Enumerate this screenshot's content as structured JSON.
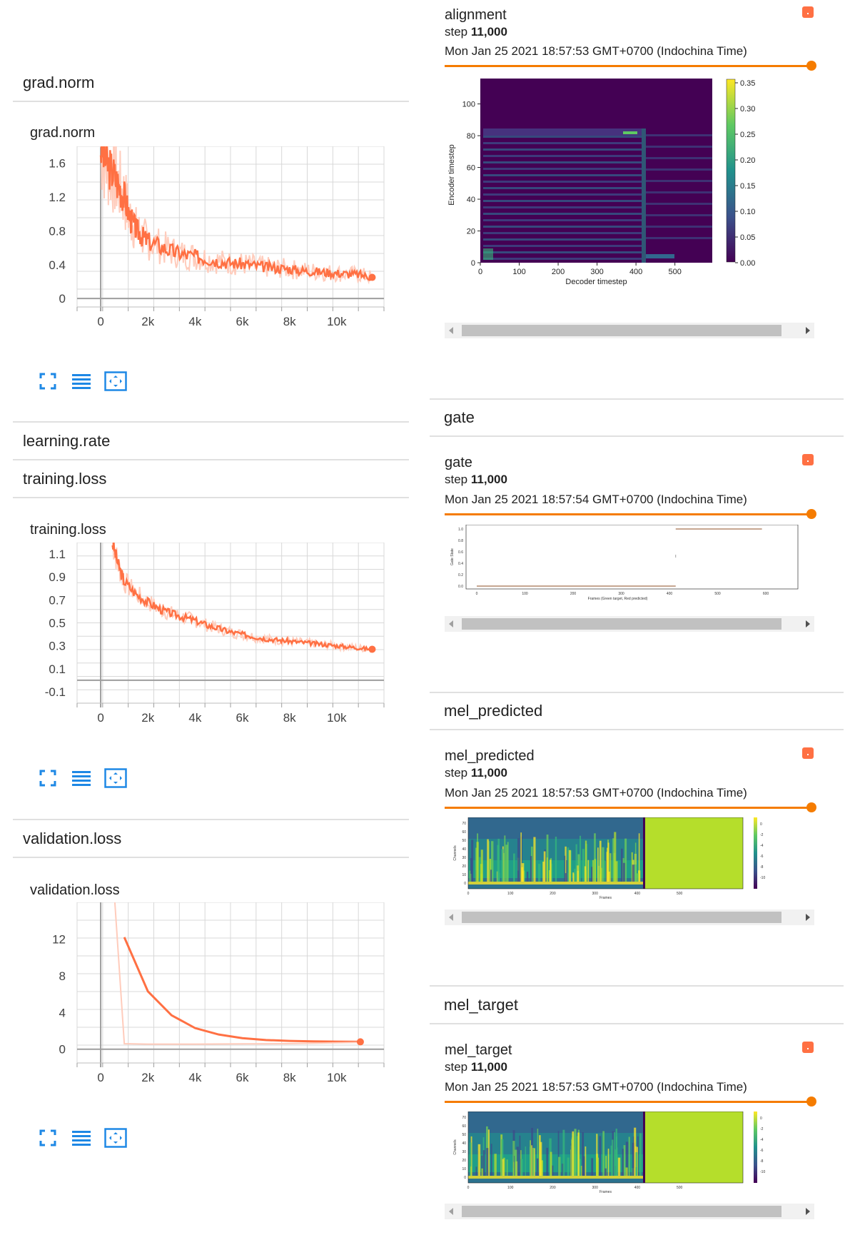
{
  "scalars": {
    "grad_norm": {
      "section_title": "grad.norm",
      "card_title": "grad.norm",
      "chart_data": {
        "type": "line",
        "title": "grad.norm",
        "x_ticks": [
          "0",
          "2k",
          "4k",
          "6k",
          "8k",
          "10k"
        ],
        "y_ticks": [
          "1.6",
          "1.2",
          "0.8",
          "0.4",
          "0"
        ],
        "xlim": [
          -1000,
          12000
        ],
        "ylim": [
          -0.1,
          1.8
        ],
        "colors": {
          "smoothed": "#ff7043",
          "raw": "#ffccbc"
        },
        "series": [
          {
            "x": [
              0,
              250,
              500,
              750,
              1000,
              1250,
              1500,
              1750,
              2000,
              2500,
              3000,
              3500,
              4000,
              4500,
              5000,
              5500,
              6000,
              6500,
              7000,
              7500,
              8000,
              8500,
              9000,
              9500,
              10000,
              10500,
              11000,
              11500
            ],
            "values": [
              1.8,
              1.6,
              1.5,
              1.35,
              1.2,
              0.95,
              0.82,
              0.74,
              0.68,
              0.62,
              0.56,
              0.52,
              0.5,
              0.47,
              0.44,
              0.42,
              0.41,
              0.39,
              0.37,
              0.36,
              0.35,
              0.33,
              0.32,
              0.31,
              0.3,
              0.29,
              0.28,
              0.25
            ]
          }
        ]
      }
    },
    "learning_rate": {
      "section_title": "learning.rate"
    },
    "training_loss": {
      "section_title": "training.loss",
      "card_title": "training.loss",
      "chart_data": {
        "type": "line",
        "title": "training.loss",
        "x_ticks": [
          "0",
          "2k",
          "4k",
          "6k",
          "8k",
          "10k"
        ],
        "y_ticks": [
          "1.1",
          "0.9",
          "0.7",
          "0.5",
          "0.3",
          "0.1",
          "-0.1"
        ],
        "xlim": [
          -1000,
          12000
        ],
        "ylim": [
          -0.2,
          1.2
        ],
        "colors": {
          "smoothed": "#ff7043",
          "raw": "#ffccbc"
        },
        "series": [
          {
            "x": [
              500,
              750,
              1000,
              1500,
              2000,
              2500,
              3000,
              3500,
              4000,
              4500,
              5000,
              5500,
              6000,
              6500,
              7000,
              7500,
              8000,
              8500,
              9000,
              9500,
              10000,
              10500,
              11000,
              11500
            ],
            "values": [
              1.2,
              1.0,
              0.86,
              0.75,
              0.68,
              0.62,
              0.58,
              0.55,
              0.52,
              0.48,
              0.45,
              0.42,
              0.4,
              0.38,
              0.36,
              0.35,
              0.34,
              0.33,
              0.32,
              0.31,
              0.3,
              0.29,
              0.28,
              0.27
            ]
          }
        ]
      }
    },
    "validation_loss": {
      "section_title": "validation.loss",
      "card_title": "validation.loss",
      "chart_data": {
        "type": "line",
        "title": "validation.loss",
        "x_ticks": [
          "0",
          "2k",
          "4k",
          "6k",
          "8k",
          "10k"
        ],
        "y_ticks": [
          "12",
          "8",
          "4",
          "0"
        ],
        "xlim": [
          -1000,
          12000
        ],
        "ylim": [
          -1.5,
          16
        ],
        "colors": {
          "smoothed": "#ff7043",
          "raw": "#ffccbc"
        },
        "series": [
          {
            "name": "smoothed",
            "x": [
              1000,
              2000,
              3000,
              4000,
              5000,
              6000,
              7000,
              8000,
              9000,
              10000,
              11000
            ],
            "values": [
              12.2,
              6.3,
              3.7,
              2.3,
              1.6,
              1.2,
              1.0,
              0.9,
              0.85,
              0.82,
              0.8
            ]
          },
          {
            "name": "raw",
            "x": [
              600,
              1000,
              2000,
              3000,
              4000,
              6000,
              8000,
              11000
            ],
            "values": [
              16,
              0.6,
              0.55,
              0.55,
              0.55,
              0.58,
              0.6,
              0.75
            ]
          }
        ]
      }
    }
  },
  "images": {
    "alignment": {
      "name": "alignment",
      "step_label": "step",
      "step_value": "11,000",
      "timestamp": "Mon Jan 25 2021 18:57:53 GMT+0700 (Indochina Time)",
      "plot": {
        "xlabel": "Decoder timestep",
        "ylabel": "Encoder timestep",
        "x_ticks": [
          "0",
          "100",
          "200",
          "300",
          "400",
          "500"
        ],
        "y_ticks": [
          "100",
          "80",
          "60",
          "40",
          "20",
          "0"
        ],
        "colorbar_ticks": [
          "0.35",
          "0.30",
          "0.25",
          "0.20",
          "0.15",
          "0.10",
          "0.05",
          "0.00"
        ]
      }
    },
    "gate": {
      "section_title": "gate",
      "name": "gate",
      "step_label": "step",
      "step_value": "11,000",
      "timestamp": "Mon Jan 25 2021 18:57:54 GMT+0700 (Indochina Time)",
      "plot": {
        "xlabel": "Frames (Green target, Red predicted)",
        "ylabel": "Gate State",
        "x_ticks": [
          "0",
          "100",
          "200",
          "300",
          "400",
          "500",
          "600"
        ],
        "y_ticks": [
          "1.0",
          "0.8",
          "0.6",
          "0.4",
          "0.2",
          "0.0"
        ]
      }
    },
    "mel_predicted": {
      "section_title": "mel_predicted",
      "name": "mel_predicted",
      "step_label": "step",
      "step_value": "11,000",
      "timestamp": "Mon Jan 25 2021 18:57:53 GMT+0700 (Indochina Time)",
      "plot": {
        "xlabel": "Frames",
        "ylabel": "Channels",
        "x_ticks": [
          "0",
          "100",
          "200",
          "300",
          "400",
          "500"
        ],
        "y_ticks": [
          "70",
          "60",
          "50",
          "40",
          "30",
          "20",
          "10",
          "0"
        ],
        "colorbar_ticks": [
          "0",
          "-2",
          "-4",
          "-6",
          "-8",
          "-10"
        ]
      }
    },
    "mel_target": {
      "section_title": "mel_target",
      "name": "mel_target",
      "step_label": "step",
      "step_value": "11,000",
      "timestamp": "Mon Jan 25 2021 18:57:53 GMT+0700 (Indochina Time)",
      "plot": {
        "xlabel": "Frames",
        "ylabel": "Channels",
        "x_ticks": [
          "0",
          "100",
          "200",
          "300",
          "400",
          "500"
        ],
        "y_ticks": [
          "70",
          "60",
          "50",
          "40",
          "30",
          "20",
          "10",
          "0"
        ],
        "colorbar_ticks": [
          "0",
          "-2",
          "-4",
          "-6",
          "-8",
          "-10"
        ]
      }
    }
  },
  "icons": {
    "fullscreen": "fullscreen-icon",
    "data_table": "data-table-icon",
    "fit_domain": "fit-domain-icon"
  },
  "colors": {
    "accent": "#f57c00",
    "icon": "#1e88e5",
    "series": "#ff7043"
  }
}
